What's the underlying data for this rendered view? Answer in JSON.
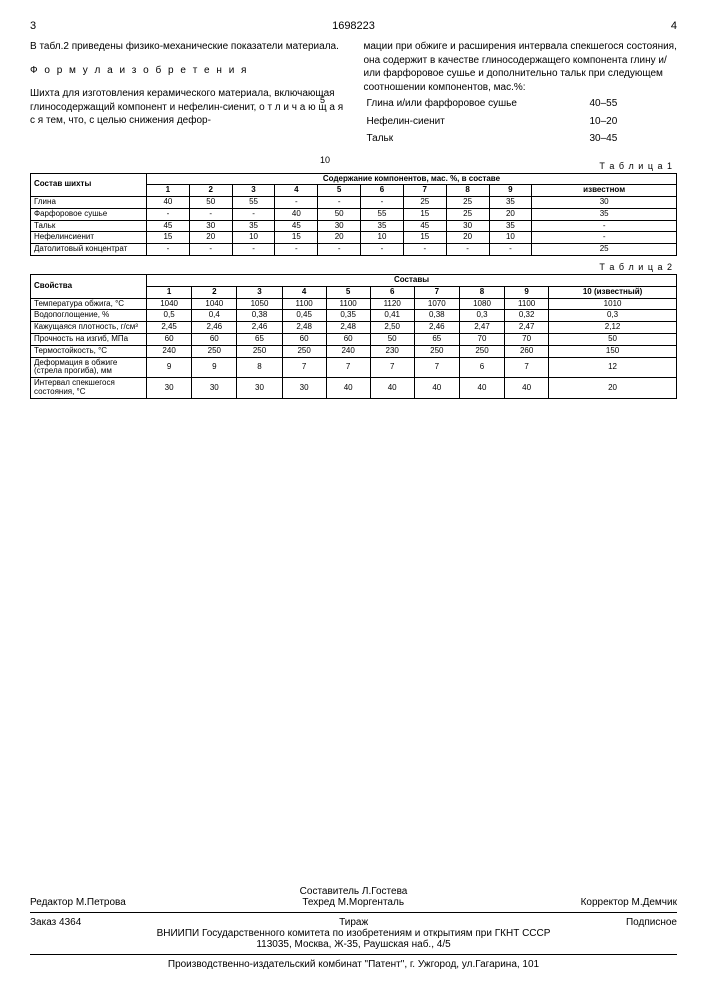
{
  "header": {
    "colLeft": "3",
    "patent": "1698223",
    "colRight": "4"
  },
  "lineMarks": {
    "m5": "5",
    "m10": "10"
  },
  "left": {
    "p1": "В табл.2 приведены физико-механические показатели материала.",
    "formulaTitle": "Ф о р м у л а  и з о б р е т е н и я",
    "p2": "Шихта для изготовления керамического материала, включающая глиносодержащий компонент и нефелин-сиенит, о т л и ч а ю щ а я с я  тем, что, с целью снижения дефор-"
  },
  "right": {
    "p1": "мации при обжиге и расширения интервала спекшегося состояния, она содержит в качестве глиносодержащего компонента глину и/или фарфоровое сушье и дополнительно тальк при следующем соотношении компонентов, мас.%:",
    "ratios": [
      {
        "name": "Глина и/или фарфоровое сушье",
        "val": "40–55"
      },
      {
        "name": "Нефелин-сиенит",
        "val": "10–20"
      },
      {
        "name": "Тальк",
        "val": "30–45"
      }
    ]
  },
  "table1": {
    "caption": "Т а б л и ц а 1",
    "h1": "Состав шихты",
    "h2": "Содержание компонентов, мас. %, в составе",
    "cols": [
      "1",
      "2",
      "3",
      "4",
      "5",
      "6",
      "7",
      "8",
      "9",
      "известном"
    ],
    "rows": [
      {
        "n": "Глина",
        "v": [
          "40",
          "50",
          "55",
          "-",
          "-",
          "-",
          "25",
          "25",
          "35",
          "30"
        ]
      },
      {
        "n": "Фарфоровое сушье",
        "v": [
          "-",
          "-",
          "-",
          "40",
          "50",
          "55",
          "15",
          "25",
          "20",
          "35"
        ]
      },
      {
        "n": "Тальк",
        "v": [
          "45",
          "30",
          "35",
          "45",
          "30",
          "35",
          "45",
          "30",
          "35",
          "-"
        ]
      },
      {
        "n": "Нефелинсиенит",
        "v": [
          "15",
          "20",
          "10",
          "15",
          "20",
          "10",
          "15",
          "20",
          "10",
          "-"
        ]
      },
      {
        "n": "Датолитовый концентрат",
        "v": [
          "-",
          "-",
          "-",
          "-",
          "-",
          "-",
          "-",
          "-",
          "-",
          "25"
        ]
      }
    ]
  },
  "table2": {
    "caption": "Т а б л и ц а 2",
    "h1": "Свойства",
    "h2": "Составы",
    "cols": [
      "1",
      "2",
      "3",
      "4",
      "5",
      "6",
      "7",
      "8",
      "9",
      "10 (известный)"
    ],
    "rows": [
      {
        "n": "Температура обжига, °С",
        "v": [
          "1040",
          "1040",
          "1050",
          "1100",
          "1100",
          "1120",
          "1070",
          "1080",
          "1100",
          "1010"
        ]
      },
      {
        "n": "Водопоглощение, %",
        "v": [
          "0,5",
          "0,4",
          "0,38",
          "0,45",
          "0,35",
          "0,41",
          "0,38",
          "0,3",
          "0,32",
          "0,3"
        ]
      },
      {
        "n": "Кажущаяся плотность, г/см³",
        "v": [
          "2,45",
          "2,46",
          "2,46",
          "2,48",
          "2,48",
          "2,50",
          "2,46",
          "2,47",
          "2,47",
          "2,12"
        ]
      },
      {
        "n": "Прочность на изгиб, МПа",
        "v": [
          "60",
          "60",
          "65",
          "60",
          "60",
          "50",
          "65",
          "70",
          "70",
          "50"
        ]
      },
      {
        "n": "Термостойкость, °С",
        "v": [
          "240",
          "250",
          "250",
          "250",
          "240",
          "230",
          "250",
          "250",
          "260",
          "150"
        ]
      },
      {
        "n": "Деформация в обжиге (стрела прогиба), мм",
        "v": [
          "9",
          "9",
          "8",
          "7",
          "7",
          "7",
          "7",
          "6",
          "7",
          "12"
        ]
      },
      {
        "n": "Интервал спекшегося состояния, °С",
        "v": [
          "30",
          "30",
          "30",
          "30",
          "40",
          "40",
          "40",
          "40",
          "40",
          "20"
        ]
      }
    ]
  },
  "footer": {
    "composer": "Составитель  Л.Гостева",
    "editor": "Редактор  М.Петрова",
    "techred": "Техред М.Моргенталь",
    "corrector": "Корректор  М.Демчик",
    "order": "Заказ 4364",
    "tirazh": "Тираж",
    "sub": "Подписное",
    "org": "ВНИИПИ Государственного комитета по изобретениям и открытиям при ГКНТ СССР",
    "addr": "113035, Москва, Ж-35, Раушская наб., 4/5",
    "prod": "Производственно-издательский комбинат \"Патент\", г. Ужгород, ул.Гагарина, 101"
  }
}
